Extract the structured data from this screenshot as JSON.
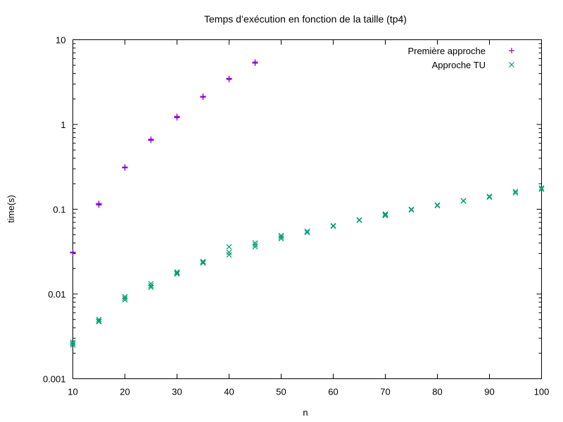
{
  "chart_data": {
    "type": "scatter",
    "title": "Temps d’exécution en fonction de la taille (tp4)",
    "xlabel": "n",
    "ylabel": "time(s)",
    "xlim": [
      10,
      100
    ],
    "ylim": [
      0.001,
      10
    ],
    "y_scale": "log",
    "x_ticks": [
      "10",
      "20",
      "30",
      "40",
      "50",
      "60",
      "70",
      "80",
      "90",
      "100"
    ],
    "y_ticks": [
      "0.001",
      "0.01",
      "0.1",
      "1",
      "10"
    ],
    "grid": false,
    "legend_position": "top-right",
    "series": [
      {
        "name": "Première approche",
        "marker": "plus",
        "color": "#9400d3",
        "points": [
          [
            10,
            0.031
          ],
          [
            10,
            0.0305
          ],
          [
            10,
            0.0312
          ],
          [
            15,
            0.112
          ],
          [
            15,
            0.117
          ],
          [
            15,
            0.114
          ],
          [
            20,
            0.31
          ],
          [
            20,
            0.315
          ],
          [
            20,
            0.308
          ],
          [
            25,
            0.66
          ],
          [
            25,
            0.67
          ],
          [
            25,
            0.65
          ],
          [
            30,
            1.22
          ],
          [
            30,
            1.25
          ],
          [
            30,
            1.2
          ],
          [
            35,
            2.1
          ],
          [
            35,
            2.15
          ],
          [
            35,
            2.12
          ],
          [
            40,
            3.4
          ],
          [
            40,
            3.5
          ],
          [
            40,
            3.45
          ],
          [
            45,
            5.3
          ],
          [
            45,
            5.45
          ],
          [
            45,
            5.35
          ]
        ]
      },
      {
        "name": "Approche TU",
        "marker": "x",
        "color": "#009e73",
        "points": [
          [
            10,
            0.0025
          ],
          [
            10,
            0.0027
          ],
          [
            10,
            0.0026
          ],
          [
            15,
            0.0047
          ],
          [
            15,
            0.005
          ],
          [
            15,
            0.0048
          ],
          [
            20,
            0.0085
          ],
          [
            20,
            0.0093
          ],
          [
            20,
            0.0089
          ],
          [
            25,
            0.012
          ],
          [
            25,
            0.0132
          ],
          [
            25,
            0.0125
          ],
          [
            30,
            0.0172
          ],
          [
            30,
            0.0182
          ],
          [
            30,
            0.0177
          ],
          [
            35,
            0.0232
          ],
          [
            35,
            0.0242
          ],
          [
            35,
            0.0237
          ],
          [
            40,
            0.029
          ],
          [
            40,
            0.031
          ],
          [
            40,
            0.036
          ],
          [
            45,
            0.036
          ],
          [
            45,
            0.038
          ],
          [
            45,
            0.04
          ],
          [
            50,
            0.045
          ],
          [
            50,
            0.047
          ],
          [
            50,
            0.049
          ],
          [
            55,
            0.053
          ],
          [
            55,
            0.055
          ],
          [
            60,
            0.063
          ],
          [
            60,
            0.064
          ],
          [
            65,
            0.074
          ],
          [
            65,
            0.075
          ],
          [
            70,
            0.084
          ],
          [
            70,
            0.086
          ],
          [
            70,
            0.088
          ],
          [
            75,
            0.098
          ],
          [
            75,
            0.1
          ],
          [
            80,
            0.11
          ],
          [
            80,
            0.112
          ],
          [
            85,
            0.125
          ],
          [
            85,
            0.126
          ],
          [
            90,
            0.139
          ],
          [
            90,
            0.142
          ],
          [
            95,
            0.156
          ],
          [
            95,
            0.162
          ],
          [
            100,
            0.172
          ],
          [
            100,
            0.178
          ]
        ]
      }
    ]
  }
}
